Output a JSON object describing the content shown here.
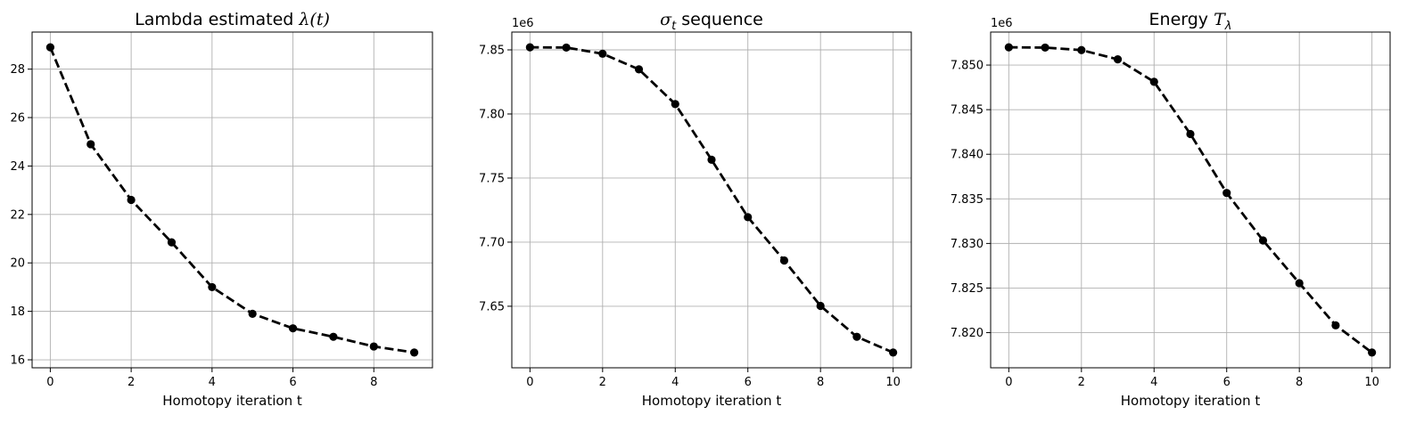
{
  "chart_data": [
    {
      "type": "line",
      "title_main": "Lambda estimated ",
      "title_math": "λ(t)",
      "xlabel": "Homotopy iteration t",
      "ylabel": "",
      "offset_text": "",
      "x": [
        0,
        1,
        2,
        3,
        4,
        5,
        6,
        7,
        8,
        9
      ],
      "y": [
        28.9,
        24.9,
        22.6,
        20.85,
        19.0,
        17.9,
        17.3,
        16.95,
        16.55,
        16.3
      ],
      "xlim": [
        -0.45,
        9.45
      ],
      "ylim": [
        15.67,
        29.53
      ],
      "xticks": [
        0,
        2,
        4,
        6,
        8
      ],
      "yticks": [
        16,
        18,
        20,
        22,
        24,
        26,
        28
      ],
      "ytick_labels": [
        "16",
        "18",
        "20",
        "22",
        "24",
        "26",
        "28"
      ],
      "grid": true,
      "line_style": "dashed",
      "marker": "circle",
      "color": "#000000"
    },
    {
      "type": "line",
      "title_main": " sequence",
      "title_math_sym": "σ",
      "title_math_sub": "t",
      "xlabel": "Homotopy iteration t",
      "ylabel": "",
      "offset_text": "1e6",
      "x": [
        0,
        1,
        2,
        3,
        4,
        5,
        6,
        7,
        8,
        9,
        10
      ],
      "y": [
        7.852,
        7.8518,
        7.847,
        7.8348,
        7.8077,
        7.7643,
        7.7195,
        7.6857,
        7.6503,
        7.6262,
        7.6139
      ],
      "xlim": [
        -0.5,
        10.5
      ],
      "ylim": [
        7.602,
        7.8639
      ],
      "xticks": [
        0,
        2,
        4,
        6,
        8,
        10
      ],
      "yticks": [
        7.65,
        7.7,
        7.75,
        7.8,
        7.85
      ],
      "ytick_labels": [
        "7.65",
        "7.70",
        "7.75",
        "7.80",
        "7.85"
      ],
      "grid": true,
      "line_style": "dashed",
      "marker": "circle",
      "color": "#000000"
    },
    {
      "type": "line",
      "title_main": "Energy ",
      "title_math_sym": "T",
      "title_math_sub": "λ",
      "xlabel": "Homotopy iteration t",
      "ylabel": "",
      "offset_text": "1e6",
      "x": [
        0,
        1,
        2,
        3,
        4,
        5,
        6,
        7,
        8,
        9,
        10
      ],
      "y": [
        7.85199,
        7.85196,
        7.85168,
        7.85064,
        7.84812,
        7.84227,
        7.83566,
        7.83034,
        7.82555,
        7.82082,
        7.81777
      ],
      "xlim": [
        -0.5,
        10.5
      ],
      "ylim": [
        7.81606,
        7.8537
      ],
      "xticks": [
        0,
        2,
        4,
        6,
        8,
        10
      ],
      "yticks": [
        7.82,
        7.825,
        7.83,
        7.835,
        7.84,
        7.845,
        7.85
      ],
      "ytick_labels": [
        "7.820",
        "7.825",
        "7.830",
        "7.835",
        "7.840",
        "7.845",
        "7.850"
      ],
      "grid": true,
      "line_style": "dashed",
      "marker": "circle",
      "color": "#000000"
    }
  ]
}
